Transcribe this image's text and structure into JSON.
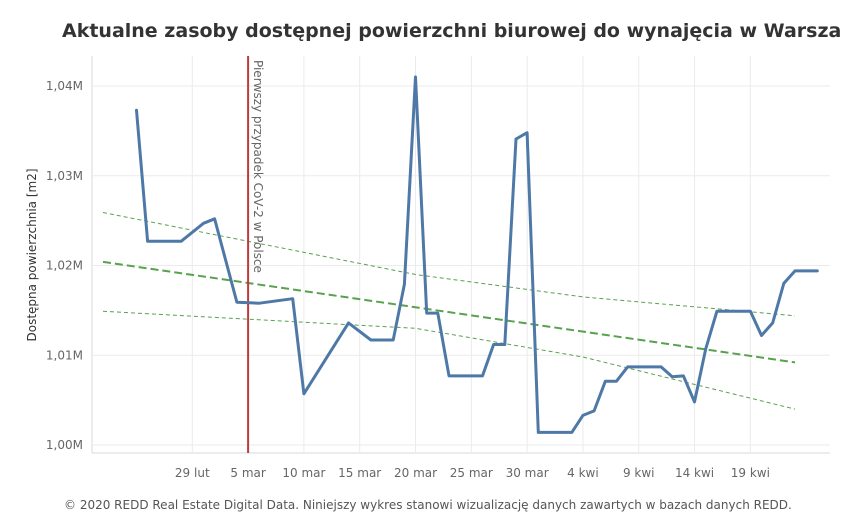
{
  "title": "Aktualne zasoby dostępnej powierzchni biurowej do wynajęcia w Warszawie",
  "footer": "© 2020 REDD Real Estate Digital Data. Niniejszy wykres stanowi wizualizację danych zawartych w bazach danych REDD.",
  "chart_data": {
    "type": "line",
    "title": "Aktualne zasoby dostępnej powierzchni biurowej do wynajęcia w Warszawie",
    "ylabel": "Dostępna powierzchnia [m2]",
    "xlabel": "",
    "ylim": [
      999500,
      1042500
    ],
    "y_ticks": [
      {
        "value": 1000000,
        "label": "1,00M"
      },
      {
        "value": 1010000,
        "label": "1,01M"
      },
      {
        "value": 1020000,
        "label": "1,02M"
      },
      {
        "value": 1030000,
        "label": "1,03M"
      },
      {
        "value": 1040000,
        "label": "1,04M"
      }
    ],
    "x_domain": [
      "2020-02-21",
      "2020-04-23"
    ],
    "x_ticks": [
      {
        "date": "2020-02-29",
        "label": "29 lut"
      },
      {
        "date": "2020-03-05",
        "label": "5 mar"
      },
      {
        "date": "2020-03-10",
        "label": "10 mar"
      },
      {
        "date": "2020-03-15",
        "label": "15 mar"
      },
      {
        "date": "2020-03-20",
        "label": "20 mar"
      },
      {
        "date": "2020-03-25",
        "label": "25 mar"
      },
      {
        "date": "2020-03-30",
        "label": "30 mar"
      },
      {
        "date": "2020-04-04",
        "label": "4 kwi"
      },
      {
        "date": "2020-04-09",
        "label": "9 kwi"
      },
      {
        "date": "2020-04-14",
        "label": "14 kwi"
      },
      {
        "date": "2020-04-19",
        "label": "19 kwi"
      }
    ],
    "grid": true,
    "colors": {
      "series": "#4e79a7",
      "trend": "#59a14f",
      "marker": "#c0393b",
      "grid": "#ebebeb"
    },
    "series": [
      {
        "color": "#4e79a7",
        "points": [
          {
            "x": "2020-02-24",
            "y": 1037300
          },
          {
            "x": "2020-02-25",
            "y": 1022700
          },
          {
            "x": "2020-02-27",
            "y": 1022700
          },
          {
            "x": "2020-02-28",
            "y": 1022700
          },
          {
            "x": "2020-03-01",
            "y": 1024700
          },
          {
            "x": "2020-03-02",
            "y": 1025200
          },
          {
            "x": "2020-03-04",
            "y": 1015900
          },
          {
            "x": "2020-03-06",
            "y": 1015800
          },
          {
            "x": "2020-03-09",
            "y": 1016300
          },
          {
            "x": "2020-03-10",
            "y": 1005700
          },
          {
            "x": "2020-03-14",
            "y": 1013600
          },
          {
            "x": "2020-03-16",
            "y": 1011700
          },
          {
            "x": "2020-03-18",
            "y": 1011700
          },
          {
            "x": "2020-03-19",
            "y": 1017900
          },
          {
            "x": "2020-03-20",
            "y": 1041000
          },
          {
            "x": "2020-03-21",
            "y": 1014700
          },
          {
            "x": "2020-03-22",
            "y": 1014700
          },
          {
            "x": "2020-03-23",
            "y": 1007700
          },
          {
            "x": "2020-03-25",
            "y": 1007700
          },
          {
            "x": "2020-03-26",
            "y": 1007700
          },
          {
            "x": "2020-03-27",
            "y": 1011200
          },
          {
            "x": "2020-03-28",
            "y": 1011200
          },
          {
            "x": "2020-03-29",
            "y": 1034100
          },
          {
            "x": "2020-03-30",
            "y": 1034800
          },
          {
            "x": "2020-03-31",
            "y": 1001400
          },
          {
            "x": "2020-04-02",
            "y": 1001400
          },
          {
            "x": "2020-04-03",
            "y": 1001400
          },
          {
            "x": "2020-04-04",
            "y": 1003300
          },
          {
            "x": "2020-04-05",
            "y": 1003800
          },
          {
            "x": "2020-04-06",
            "y": 1007100
          },
          {
            "x": "2020-04-07",
            "y": 1007100
          },
          {
            "x": "2020-04-08",
            "y": 1008700
          },
          {
            "x": "2020-04-10",
            "y": 1008700
          },
          {
            "x": "2020-04-11",
            "y": 1008700
          },
          {
            "x": "2020-04-12",
            "y": 1007600
          },
          {
            "x": "2020-04-13",
            "y": 1007700
          },
          {
            "x": "2020-04-14",
            "y": 1004800
          },
          {
            "x": "2020-04-15",
            "y": 1010700
          },
          {
            "x": "2020-04-16",
            "y": 1014900
          },
          {
            "x": "2020-04-18",
            "y": 1014900
          },
          {
            "x": "2020-04-19",
            "y": 1014900
          },
          {
            "x": "2020-04-20",
            "y": 1012200
          },
          {
            "x": "2020-04-21",
            "y": 1013600
          },
          {
            "x": "2020-04-22",
            "y": 1018000
          },
          {
            "x": "2020-04-23",
            "y": 1019400
          },
          {
            "x": "2020-04-25",
            "y": 1019400
          }
        ]
      }
    ],
    "trend_lines": [
      {
        "style": "dashed",
        "points": [
          {
            "x": "2020-02-21",
            "y": 1020400
          },
          {
            "x": "2020-04-23",
            "y": 1009200
          }
        ]
      },
      {
        "style": "dotted-upper",
        "points": [
          {
            "x": "2020-02-21",
            "y": 1025900
          },
          {
            "x": "2020-03-20",
            "y": 1019000
          },
          {
            "x": "2020-04-04",
            "y": 1016500
          },
          {
            "x": "2020-04-23",
            "y": 1014400
          }
        ]
      },
      {
        "style": "dotted-lower",
        "points": [
          {
            "x": "2020-02-21",
            "y": 1014900
          },
          {
            "x": "2020-03-20",
            "y": 1013000
          },
          {
            "x": "2020-04-04",
            "y": 1009800
          },
          {
            "x": "2020-04-23",
            "y": 1004000
          }
        ]
      }
    ],
    "annotations": [
      {
        "x": "2020-03-05",
        "text": "Pierwszy przypadek CoV-2 w Polsce"
      }
    ]
  }
}
